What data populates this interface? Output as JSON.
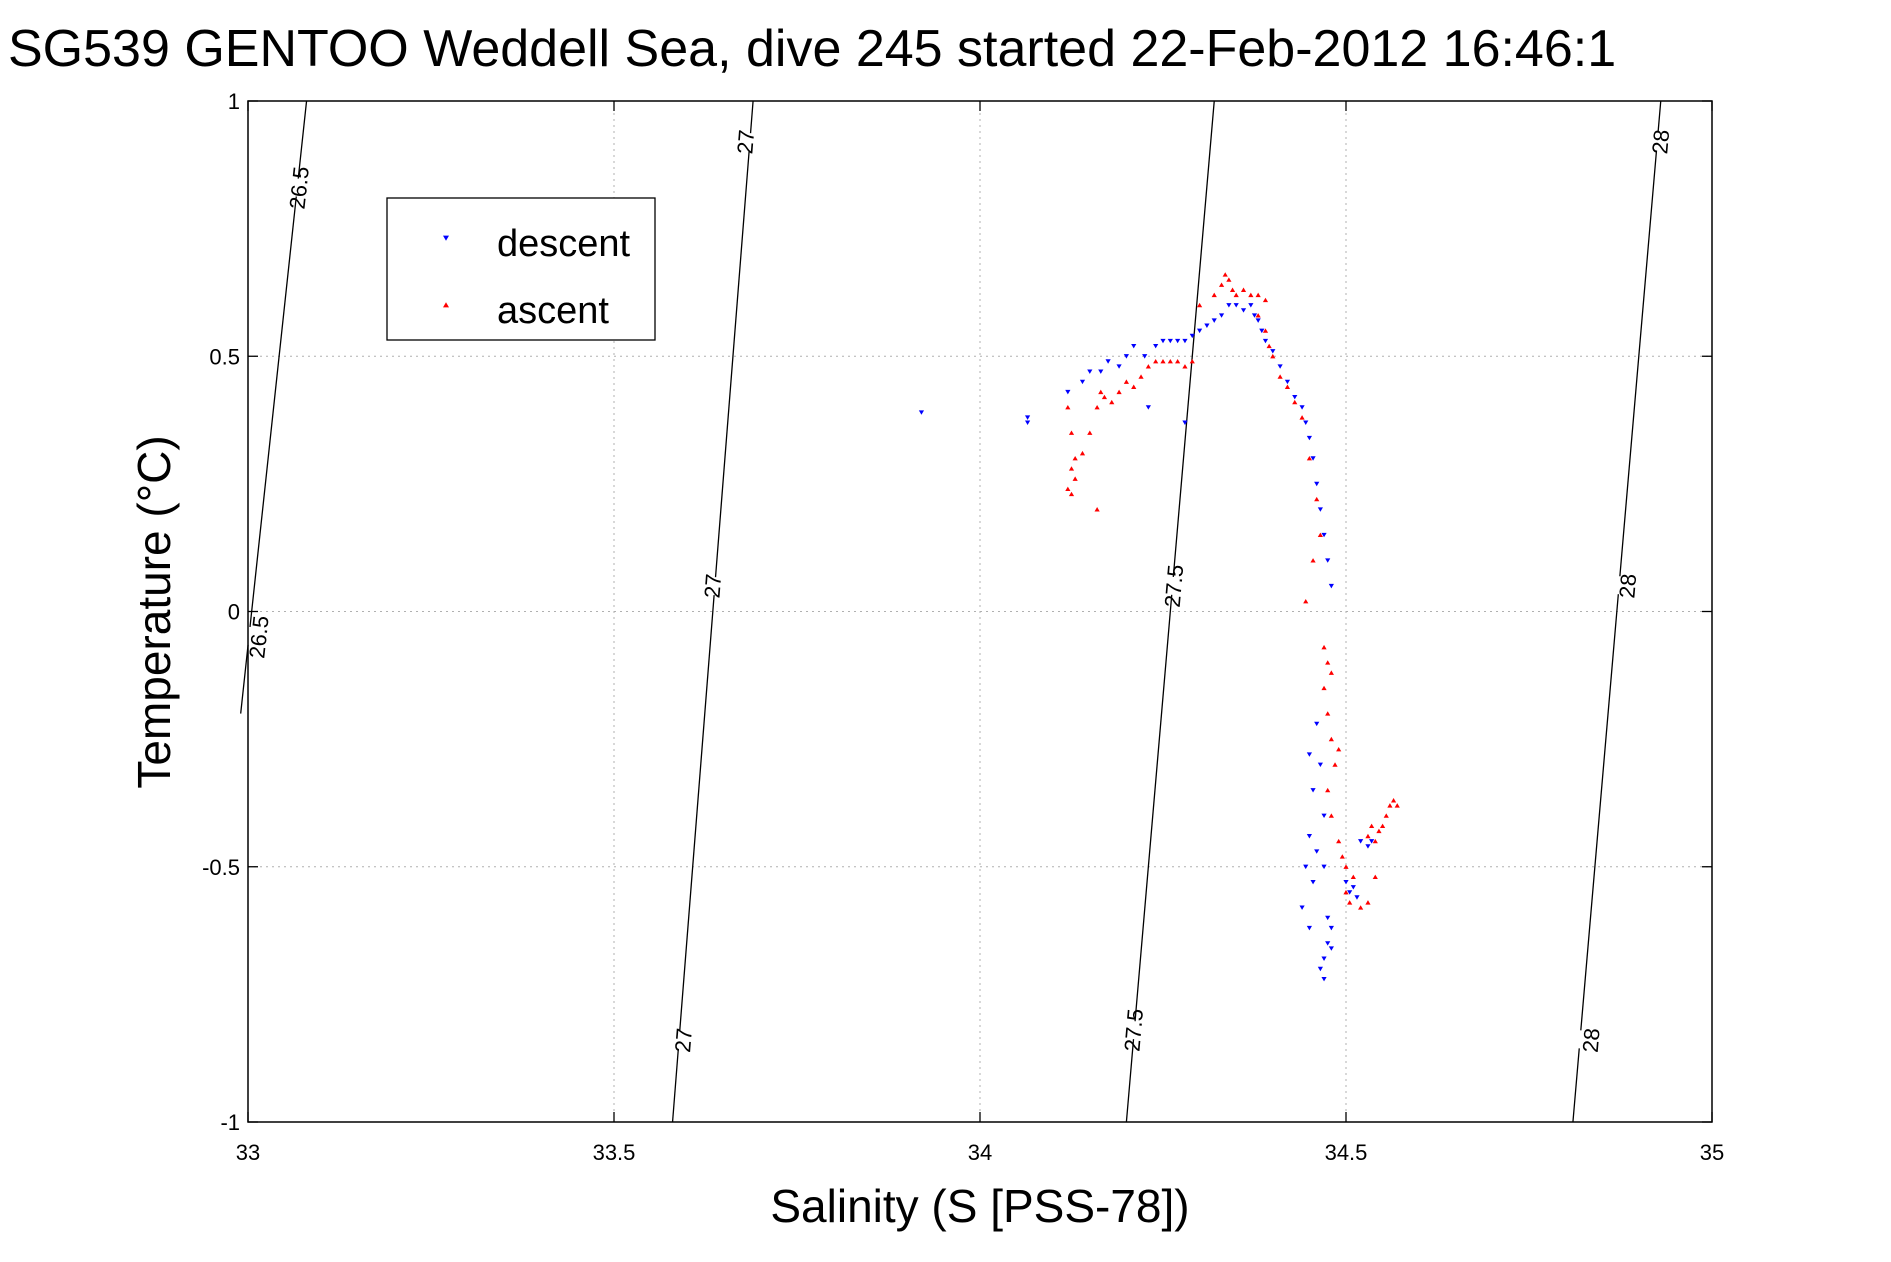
{
  "chart_data": {
    "type": "scatter",
    "title": "SG539 GENTOO Weddell Sea, dive 245 started 22-Feb-2012 16:46:1",
    "xlabel": "Salinity (S [PSS-78])",
    "ylabel": "Temperature (°C)",
    "xlim": [
      33,
      35
    ],
    "ylim": [
      -1,
      1
    ],
    "xticks": [
      33,
      33.5,
      34,
      34.5,
      35
    ],
    "yticks": [
      -1,
      -0.5,
      0,
      0.5,
      1
    ],
    "xtick_labels": [
      "33",
      "33.5",
      "34",
      "34.5",
      "35"
    ],
    "ytick_labels": [
      "-1",
      "-0.5",
      "0",
      "0.5",
      "1"
    ],
    "grid": true,
    "legend_position": "top-left",
    "density_contours": [
      {
        "label": "26.5",
        "points": [
          [
            33.08,
            1.0
          ],
          [
            32.99,
            -0.2
          ]
        ],
        "label_positions": [
          [
            33.07,
            0.83
          ],
          [
            33.015,
            -0.05
          ]
        ]
      },
      {
        "label": "27",
        "points": [
          [
            33.69,
            1.0
          ],
          [
            33.58,
            -1.0
          ]
        ],
        "label_positions": [
          [
            33.68,
            0.92
          ],
          [
            33.635,
            0.05
          ],
          [
            33.595,
            -0.84
          ]
        ]
      },
      {
        "label": "27.5",
        "points": [
          [
            34.32,
            1.0
          ],
          [
            34.2,
            -1.0
          ]
        ],
        "label_positions": [
          [
            34.265,
            0.05
          ],
          [
            34.21,
            -0.82
          ]
        ]
      },
      {
        "label": "28",
        "points": [
          [
            34.93,
            1.0
          ],
          [
            34.81,
            -1.0
          ]
        ],
        "label_positions": [
          [
            34.93,
            0.92
          ],
          [
            34.885,
            0.05
          ],
          [
            34.835,
            -0.84
          ]
        ]
      }
    ],
    "series": [
      {
        "name": "descent",
        "color": "#0000ff",
        "marker": "triangle-down",
        "points": [
          [
            33.92,
            0.39
          ],
          [
            34.065,
            0.38
          ],
          [
            34.065,
            0.37
          ],
          [
            34.12,
            0.43
          ],
          [
            34.14,
            0.45
          ],
          [
            34.15,
            0.47
          ],
          [
            34.165,
            0.47
          ],
          [
            34.175,
            0.49
          ],
          [
            34.19,
            0.48
          ],
          [
            34.2,
            0.5
          ],
          [
            34.21,
            0.52
          ],
          [
            34.225,
            0.5
          ],
          [
            34.24,
            0.52
          ],
          [
            34.25,
            0.53
          ],
          [
            34.26,
            0.53
          ],
          [
            34.27,
            0.53
          ],
          [
            34.28,
            0.53
          ],
          [
            34.29,
            0.54
          ],
          [
            34.3,
            0.55
          ],
          [
            34.31,
            0.56
          ],
          [
            34.32,
            0.57
          ],
          [
            34.33,
            0.58
          ],
          [
            34.34,
            0.6
          ],
          [
            34.35,
            0.6
          ],
          [
            34.36,
            0.59
          ],
          [
            34.37,
            0.6
          ],
          [
            34.375,
            0.58
          ],
          [
            34.38,
            0.57
          ],
          [
            34.385,
            0.55
          ],
          [
            34.39,
            0.53
          ],
          [
            34.4,
            0.51
          ],
          [
            34.41,
            0.48
          ],
          [
            34.42,
            0.45
          ],
          [
            34.43,
            0.42
          ],
          [
            34.44,
            0.4
          ],
          [
            34.445,
            0.37
          ],
          [
            34.45,
            0.34
          ],
          [
            34.455,
            0.3
          ],
          [
            34.46,
            0.25
          ],
          [
            34.465,
            0.2
          ],
          [
            34.47,
            0.15
          ],
          [
            34.475,
            0.1
          ],
          [
            34.48,
            0.05
          ],
          [
            34.23,
            0.4
          ],
          [
            34.28,
            0.37
          ],
          [
            34.45,
            -0.28
          ],
          [
            34.455,
            -0.35
          ],
          [
            34.46,
            -0.22
          ],
          [
            34.465,
            -0.3
          ],
          [
            34.47,
            -0.4
          ],
          [
            34.45,
            -0.44
          ],
          [
            34.445,
            -0.5
          ],
          [
            34.455,
            -0.53
          ],
          [
            34.46,
            -0.47
          ],
          [
            34.44,
            -0.58
          ],
          [
            34.45,
            -0.62
          ],
          [
            34.47,
            -0.5
          ],
          [
            34.475,
            -0.6
          ],
          [
            34.48,
            -0.62
          ],
          [
            34.475,
            -0.65
          ],
          [
            34.47,
            -0.68
          ],
          [
            34.465,
            -0.7
          ],
          [
            34.48,
            -0.66
          ],
          [
            34.47,
            -0.72
          ],
          [
            34.5,
            -0.53
          ],
          [
            34.505,
            -0.55
          ],
          [
            34.51,
            -0.54
          ],
          [
            34.515,
            -0.56
          ],
          [
            34.52,
            -0.45
          ],
          [
            34.53,
            -0.46
          ],
          [
            34.535,
            -0.45
          ]
        ]
      },
      {
        "name": "ascent",
        "color": "#ff0000",
        "marker": "triangle-up",
        "points": [
          [
            34.12,
            0.4
          ],
          [
            34.125,
            0.35
          ],
          [
            34.13,
            0.3
          ],
          [
            34.125,
            0.28
          ],
          [
            34.13,
            0.26
          ],
          [
            34.14,
            0.31
          ],
          [
            34.15,
            0.35
          ],
          [
            34.16,
            0.4
          ],
          [
            34.165,
            0.43
          ],
          [
            34.17,
            0.42
          ],
          [
            34.12,
            0.24
          ],
          [
            34.125,
            0.23
          ],
          [
            34.16,
            0.2
          ],
          [
            34.18,
            0.41
          ],
          [
            34.19,
            0.43
          ],
          [
            34.2,
            0.45
          ],
          [
            34.21,
            0.44
          ],
          [
            34.22,
            0.46
          ],
          [
            34.23,
            0.48
          ],
          [
            34.24,
            0.49
          ],
          [
            34.25,
            0.49
          ],
          [
            34.26,
            0.49
          ],
          [
            34.27,
            0.49
          ],
          [
            34.28,
            0.48
          ],
          [
            34.29,
            0.49
          ],
          [
            34.3,
            0.6
          ],
          [
            34.32,
            0.62
          ],
          [
            34.33,
            0.64
          ],
          [
            34.335,
            0.66
          ],
          [
            34.34,
            0.65
          ],
          [
            34.345,
            0.63
          ],
          [
            34.35,
            0.62
          ],
          [
            34.36,
            0.63
          ],
          [
            34.37,
            0.62
          ],
          [
            34.38,
            0.62
          ],
          [
            34.39,
            0.61
          ],
          [
            34.38,
            0.58
          ],
          [
            34.39,
            0.55
          ],
          [
            34.395,
            0.52
          ],
          [
            34.4,
            0.5
          ],
          [
            34.41,
            0.46
          ],
          [
            34.42,
            0.44
          ],
          [
            34.43,
            0.41
          ],
          [
            34.44,
            0.38
          ],
          [
            34.45,
            0.3
          ],
          [
            34.46,
            0.22
          ],
          [
            34.465,
            0.15
          ],
          [
            34.455,
            0.1
          ],
          [
            34.445,
            0.02
          ],
          [
            34.47,
            -0.07
          ],
          [
            34.475,
            -0.1
          ],
          [
            34.48,
            -0.12
          ],
          [
            34.47,
            -0.15
          ],
          [
            34.475,
            -0.2
          ],
          [
            34.48,
            -0.25
          ],
          [
            34.49,
            -0.27
          ],
          [
            34.485,
            -0.3
          ],
          [
            34.475,
            -0.35
          ],
          [
            34.48,
            -0.4
          ],
          [
            34.49,
            -0.45
          ],
          [
            34.495,
            -0.48
          ],
          [
            34.5,
            -0.5
          ],
          [
            34.51,
            -0.52
          ],
          [
            34.5,
            -0.55
          ],
          [
            34.505,
            -0.57
          ],
          [
            34.52,
            -0.58
          ],
          [
            34.53,
            -0.57
          ],
          [
            34.54,
            -0.52
          ],
          [
            34.53,
            -0.44
          ],
          [
            34.535,
            -0.42
          ],
          [
            34.54,
            -0.45
          ],
          [
            34.545,
            -0.43
          ],
          [
            34.55,
            -0.42
          ],
          [
            34.555,
            -0.4
          ],
          [
            34.56,
            -0.38
          ],
          [
            34.565,
            -0.37
          ],
          [
            34.57,
            -0.38
          ]
        ]
      }
    ]
  }
}
